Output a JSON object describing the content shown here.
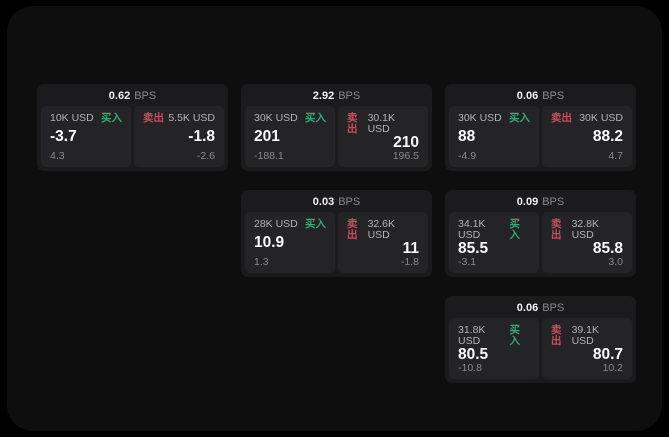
{
  "labels": {
    "bps_unit": "BPS",
    "buy": "买入",
    "sell": "卖出"
  },
  "colors": {
    "buy_green": "#36a873",
    "sell_red": "#d04a5e",
    "background": "#000000",
    "panel_bg": "#0e0e0f",
    "card_bg": "#1b1b1d",
    "tile_bg": "#242427"
  },
  "cards": [
    {
      "bps": "0.62",
      "buy": {
        "size": "10K USD",
        "price": "-3.7",
        "sub": "4.3"
      },
      "sell": {
        "size": "5.5K USD",
        "price": "-1.8",
        "sub": "-2.6"
      }
    },
    {
      "bps": "2.92",
      "buy": {
        "size": "30K USD",
        "price": "201",
        "sub": "-188.1"
      },
      "sell": {
        "size": "30.1K USD",
        "price": "210",
        "sub": "196.5"
      }
    },
    {
      "bps": "0.06",
      "buy": {
        "size": "30K USD",
        "price": "88",
        "sub": "-4.9"
      },
      "sell": {
        "size": "30K USD",
        "price": "88.2",
        "sub": "4.7"
      }
    },
    {
      "bps": "0.03",
      "buy": {
        "size": "28K USD",
        "price": "10.9",
        "sub": "1.3"
      },
      "sell": {
        "size": "32.6K USD",
        "price": "11",
        "sub": "-1.8"
      }
    },
    {
      "bps": "0.09",
      "buy": {
        "size": "34.1K USD",
        "price": "85.5",
        "sub": "-3.1"
      },
      "sell": {
        "size": "32.8K USD",
        "price": "85.8",
        "sub": "3.0"
      }
    },
    {
      "bps": "0.06",
      "buy": {
        "size": "31.8K USD",
        "price": "80.5",
        "sub": "-10.8"
      },
      "sell": {
        "size": "39.1K USD",
        "price": "80.7",
        "sub": "10.2"
      }
    }
  ]
}
